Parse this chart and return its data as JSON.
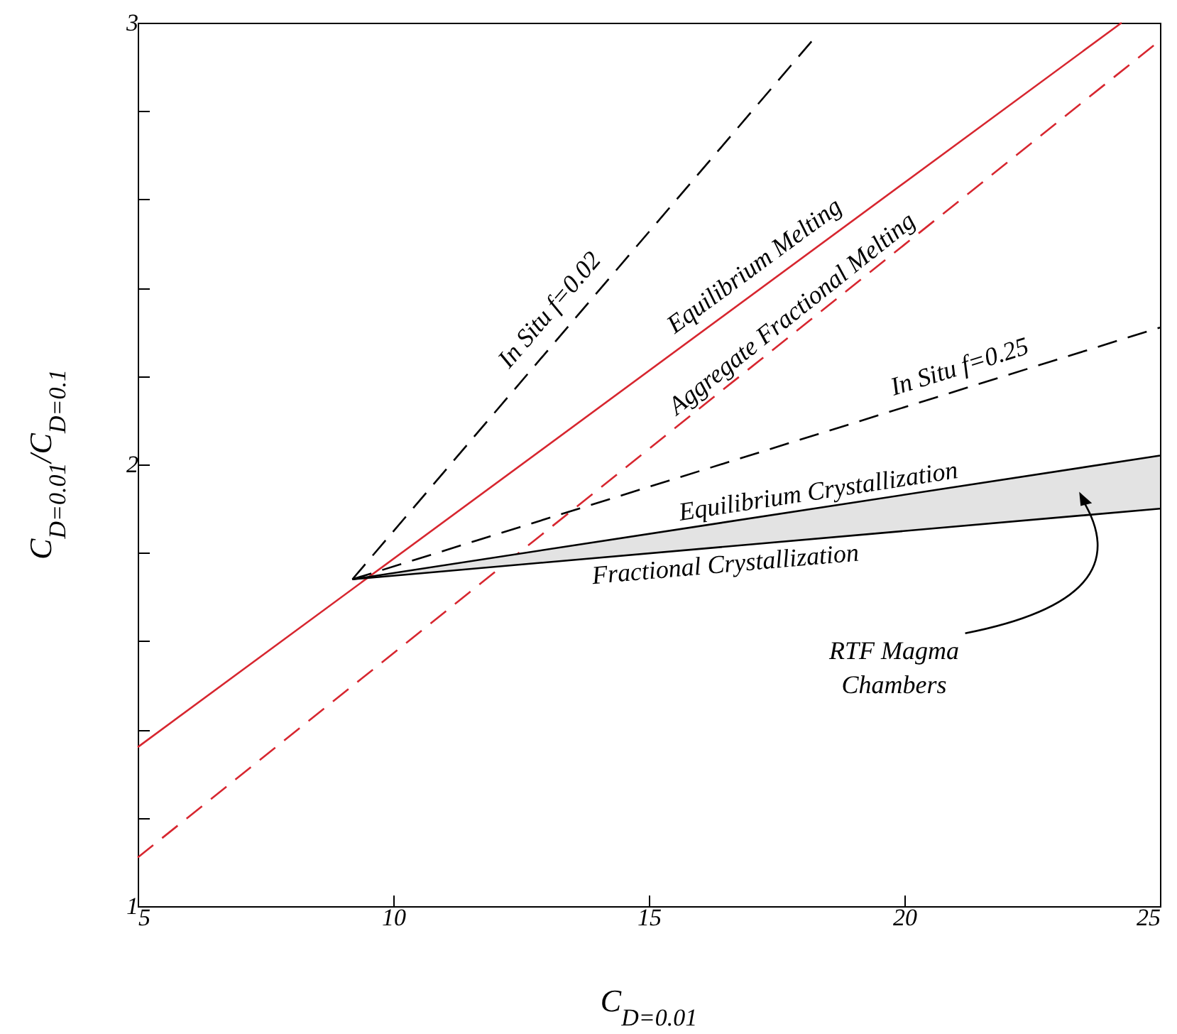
{
  "chart_data": {
    "type": "line",
    "xlabel": "C$_{D=0.01}$",
    "ylabel": "C$_{D=0.01}$/C$_{D=0.1}$",
    "xlim": [
      5,
      25
    ],
    "xticks": [
      5,
      10,
      15,
      20,
      25
    ],
    "ylim": [
      1,
      3
    ],
    "yticks": [
      1,
      {
        "value": 1.2,
        "label": null
      },
      {
        "value": 1.4,
        "label": null
      },
      {
        "value": 1.6,
        "label": null
      },
      {
        "value": 1.8,
        "label": null
      },
      2,
      {
        "value": 2.2,
        "label": null
      },
      {
        "value": 2.4,
        "label": null
      },
      {
        "value": 2.6,
        "label": null
      },
      {
        "value": 2.8,
        "label": null
      },
      3
    ],
    "grid": false,
    "marker": "none",
    "series": [
      {
        "name": "Equilibrium Melting",
        "color": "#d7262f",
        "line_style": "solid",
        "x": [
          5,
          24.25
        ],
        "values": [
          1.36,
          3
        ]
      },
      {
        "name": "Aggregate Fractional Melting",
        "color": "#d7262f",
        "line_style": "dashed",
        "x": [
          5,
          25
        ],
        "values": [
          1.11,
          2.96
        ]
      },
      {
        "name": "In Situ f=0.02",
        "color": "#000000",
        "line_style": "dashed",
        "x": [
          9.2,
          18.2
        ],
        "values": [
          1.74,
          2.96
        ]
      },
      {
        "name": "In Situ f=0.25",
        "color": "#000000",
        "line_style": "dashed",
        "x": [
          9.2,
          25
        ],
        "values": [
          1.74,
          2.31
        ]
      },
      {
        "name": "Equilibrium Crystallization",
        "color": "#000000",
        "line_style": "solid",
        "x": [
          9.2,
          25
        ],
        "values": [
          1.74,
          2.02
        ],
        "lower": [
          1.74,
          1.9
        ],
        "upper": [
          1.74,
          2.02
        ]
      },
      {
        "name": "Fractional Crystallization",
        "color": "#000000",
        "line_style": "solid",
        "x": [
          9.2,
          25
        ],
        "values": [
          1.74,
          1.9
        ]
      }
    ],
    "annotations": [
      "RTF Magma Chambers"
    ]
  }
}
